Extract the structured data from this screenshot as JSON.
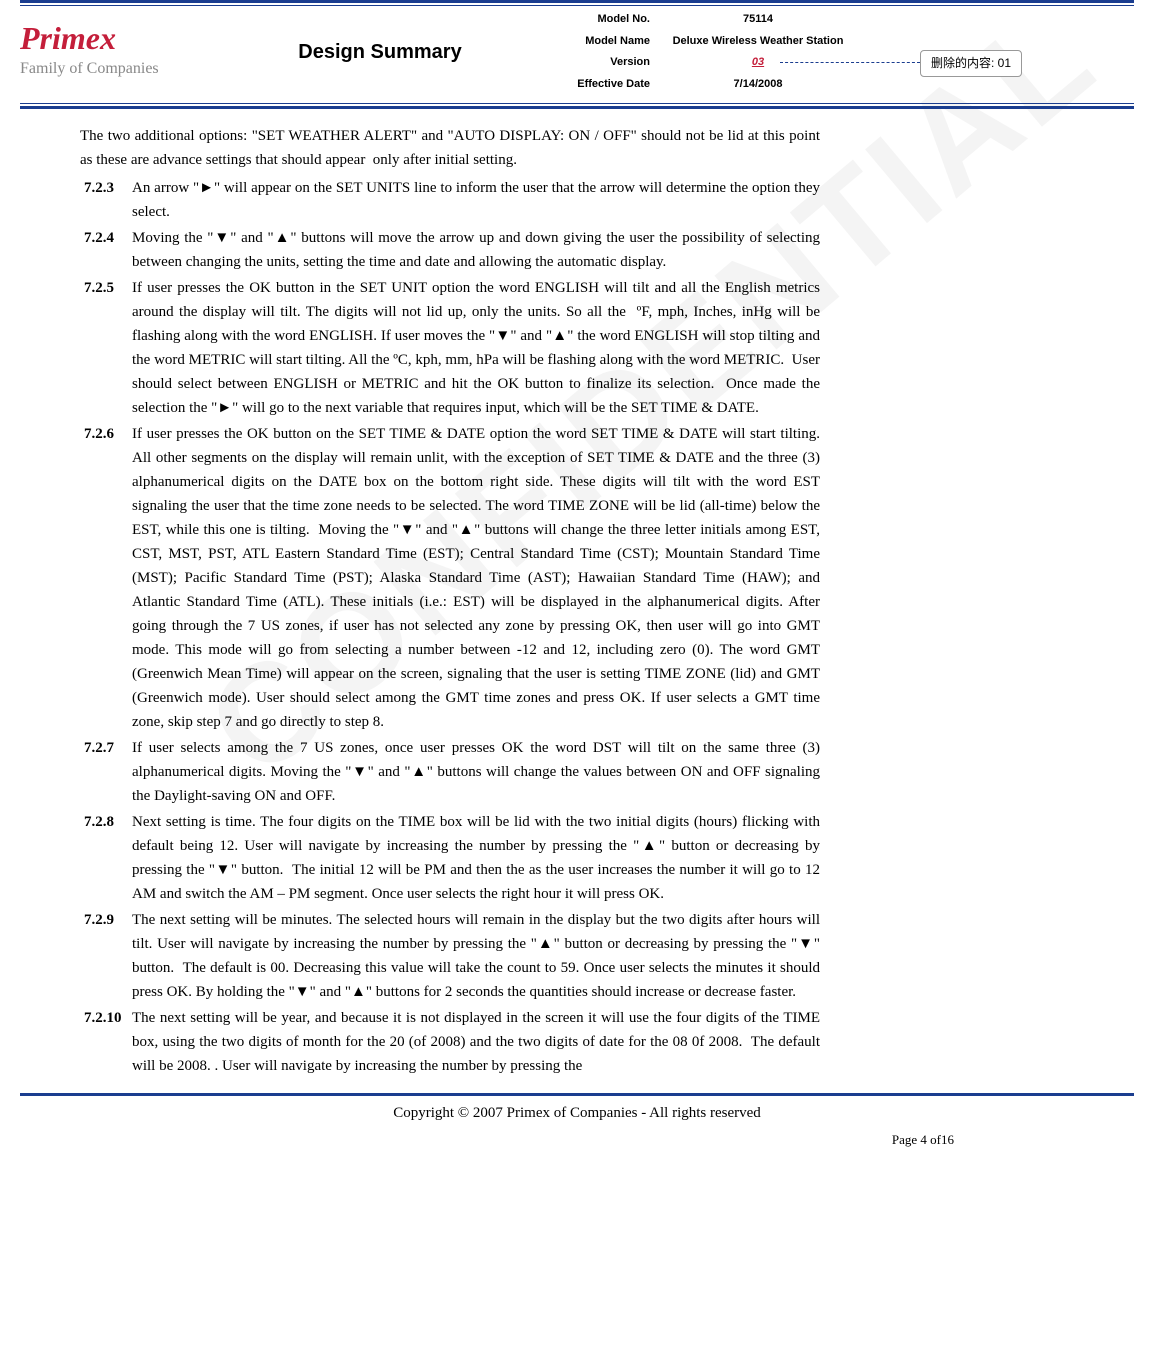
{
  "header": {
    "logo_main": "Primex",
    "logo_sub": "Family of Companies",
    "title": "Design Summary",
    "meta": {
      "model_no_label": "Model No.",
      "model_no_value": "75114",
      "model_name_label": "Model Name",
      "model_name_value": "Deluxe Wireless Weather Station",
      "version_label": "Version",
      "version_value": "03",
      "effective_date_label": "Effective Date",
      "effective_date_value": "7/14/2008"
    },
    "annotation_label": "删除的内容: 01"
  },
  "intro": "The two additional options: \"SET WEATHER ALERT\" and \"AUTO DISPLAY: ON / OFF\" should not be lid at this point as these are advance settings that should appear  only after initial setting.",
  "items": [
    {
      "num": "7.2.3",
      "text": "An arrow \"►\" will appear on the SET UNITS line to inform the user that the arrow will determine the option they select."
    },
    {
      "num": "7.2.4",
      "text": "Moving the \"▼\" and \"▲\" buttons will move the arrow up and down giving the user the possibility of selecting between changing the units, setting the time and date and allowing the automatic display."
    },
    {
      "num": "7.2.5",
      "text": "If user presses the OK button in the SET UNIT option the word ENGLISH will tilt and all the English metrics around the display will tilt. The digits will not lid up, only the units. So all the  ºF, mph, Inches, inHg will be flashing along with the word ENGLISH. If user moves the \"▼\" and \"▲\" the word ENGLISH will stop tilting and the word METRIC will start tilting. All the ºC, kph, mm, hPa will be flashing along with the word METRIC.  User should select between ENGLISH or METRIC and hit the OK button to finalize its selection.  Once made the selection the \"►\" will go to the next variable that requires input, which will be the SET TIME & DATE."
    },
    {
      "num": "7.2.6",
      "text": "If user presses the OK button on the SET TIME & DATE option the word SET TIME & DATE will start tilting. All other segments on the display will remain unlit, with the exception of SET TIME & DATE and the three (3) alphanumerical digits on the DATE box on the bottom right side. These digits will tilt with the word EST signaling the user that the time zone needs to be selected. The word TIME ZONE will be lid (all-time) below the EST, while this one is tilting.  Moving the \"▼\" and \"▲\" buttons will change the three letter initials among EST, CST, MST, PST, ATL Eastern Standard Time (EST); Central Standard Time (CST); Mountain Standard Time (MST); Pacific Standard Time (PST); Alaska Standard Time (AST); Hawaiian Standard Time (HAW); and Atlantic Standard Time (ATL). These initials (i.e.: EST) will be displayed in the alphanumerical digits. After going through the 7 US zones, if user has not selected any zone by pressing OK, then user will go into GMT mode. This mode will go from selecting a number between -12 and 12, including zero (0). The word GMT (Greenwich Mean Time) will appear on the screen, signaling that the user is setting TIME ZONE (lid) and GMT (Greenwich mode). User should select among the GMT time zones and press OK. If user selects a GMT time zone, skip step 7 and go directly to step 8."
    },
    {
      "num": "7.2.7",
      "text": "If user selects among the 7 US zones, once user presses OK the word DST will tilt on the same three (3) alphanumerical digits. Moving the \"▼\" and \"▲\" buttons will change the values between ON and OFF signaling the Daylight-saving ON and OFF."
    },
    {
      "num": "7.2.8",
      "text": "Next setting is time. The four digits on the TIME box will be lid with the two initial digits (hours) flicking with default being 12. User will navigate by increasing the number by pressing the \"▲\" button or decreasing by pressing the \"▼\" button.  The initial 12 will be PM and then the as the user increases the number it will go to 12 AM and switch the AM – PM segment. Once user selects the right hour it will press OK."
    },
    {
      "num": "7.2.9",
      "text": "The next setting will be minutes. The selected hours will remain in the display but the two digits after hours will tilt. User will navigate by increasing the number by pressing the \"▲\" button or decreasing by pressing the \"▼\" button.  The default is 00. Decreasing this value will take the count to 59. Once user selects the minutes it should press OK. By holding the \"▼\" and \"▲\" buttons for 2 seconds the quantities should increase or decrease faster."
    },
    {
      "num": "7.2.10",
      "text": "The next setting will be year, and because it is not displayed in the screen it will use the four digits of the TIME box, using the two digits of month for the 20 (of 2008) and the two digits of date for the 08 0f 2008.  The default will be 2008. . User will navigate by increasing the number by pressing the"
    }
  ],
  "footer": {
    "copyright": "Copyright © 2007 Primex of Companies - All rights reserved",
    "page": "Page 4 of16"
  }
}
